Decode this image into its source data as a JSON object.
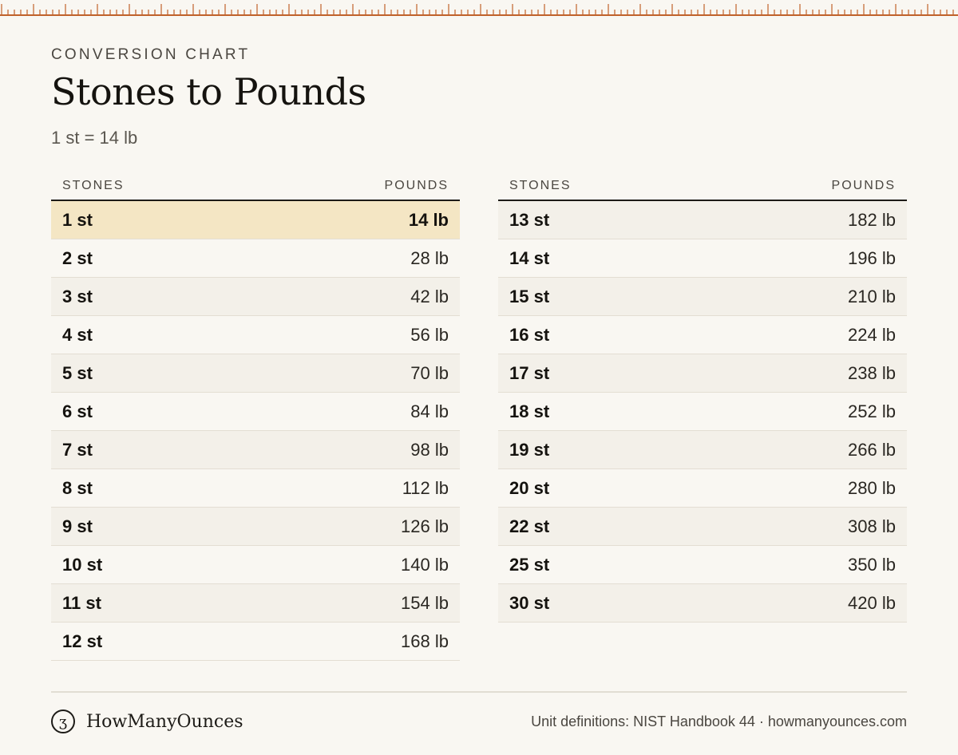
{
  "header": {
    "eyebrow": "CONVERSION CHART",
    "title": "Stones to Pounds",
    "subtitle": "1 st = 14 lb"
  },
  "colors": {
    "ruler": "#c0622b",
    "highlight": "#f4e6c4",
    "row_alt": "#f3f0e9",
    "background": "#f9f7f2"
  },
  "tables": [
    {
      "headers": {
        "stones": "STONES",
        "pounds": "POUNDS"
      },
      "rows": [
        {
          "stones": "1 st",
          "pounds": "14 lb",
          "highlight": true
        },
        {
          "stones": "2 st",
          "pounds": "28 lb"
        },
        {
          "stones": "3 st",
          "pounds": "42 lb"
        },
        {
          "stones": "4 st",
          "pounds": "56 lb"
        },
        {
          "stones": "5 st",
          "pounds": "70 lb"
        },
        {
          "stones": "6 st",
          "pounds": "84 lb"
        },
        {
          "stones": "7 st",
          "pounds": "98 lb"
        },
        {
          "stones": "8 st",
          "pounds": "112 lb"
        },
        {
          "stones": "9 st",
          "pounds": "126 lb"
        },
        {
          "stones": "10 st",
          "pounds": "140 lb"
        },
        {
          "stones": "11 st",
          "pounds": "154 lb"
        },
        {
          "stones": "12 st",
          "pounds": "168 lb"
        }
      ]
    },
    {
      "headers": {
        "stones": "STONES",
        "pounds": "POUNDS"
      },
      "rows": [
        {
          "stones": "13 st",
          "pounds": "182 lb"
        },
        {
          "stones": "14 st",
          "pounds": "196 lb"
        },
        {
          "stones": "15 st",
          "pounds": "210 lb"
        },
        {
          "stones": "16 st",
          "pounds": "224 lb"
        },
        {
          "stones": "17 st",
          "pounds": "238 lb"
        },
        {
          "stones": "18 st",
          "pounds": "252 lb"
        },
        {
          "stones": "19 st",
          "pounds": "266 lb"
        },
        {
          "stones": "20 st",
          "pounds": "280 lb"
        },
        {
          "stones": "22 st",
          "pounds": "308 lb"
        },
        {
          "stones": "25 st",
          "pounds": "350 lb"
        },
        {
          "stones": "30 st",
          "pounds": "420 lb"
        }
      ]
    }
  ],
  "footer": {
    "logo_icon": "ounce-glyph-icon",
    "logo_glyph": "ʒ",
    "brand": "HowManyOunces",
    "source": "Unit definitions: NIST Handbook 44 · howmanyounces.com"
  }
}
